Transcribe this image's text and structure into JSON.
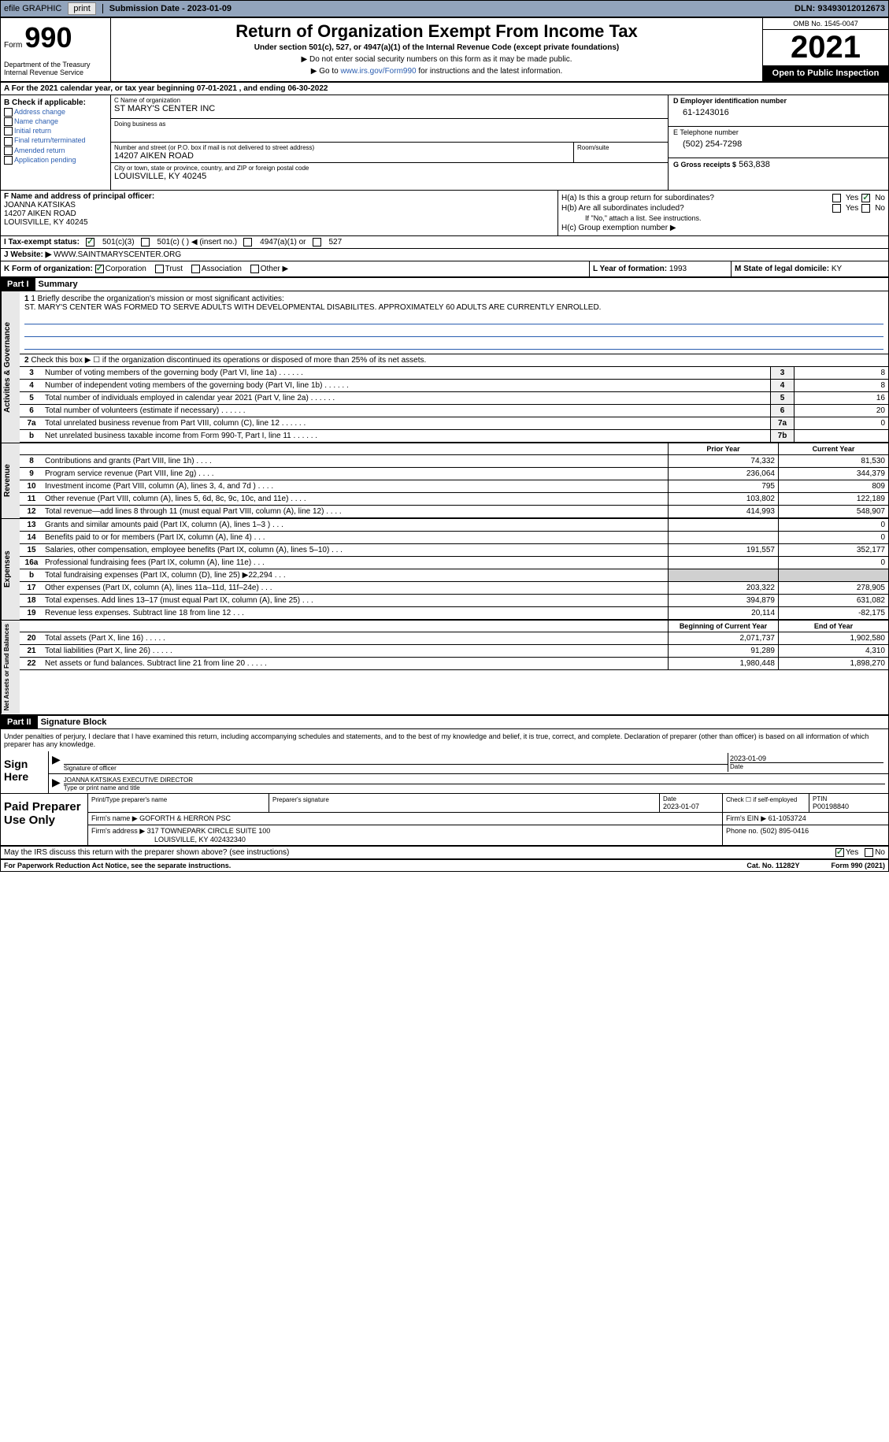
{
  "topbar": {
    "efile": "efile GRAPHIC",
    "print_btn": "print",
    "submission_label": "Submission Date - 2023-01-09",
    "dln": "DLN: 93493012012673"
  },
  "header": {
    "form_label": "Form",
    "form_number": "990",
    "dept": "Department of the Treasury\nInternal Revenue Service",
    "title": "Return of Organization Exempt From Income Tax",
    "subtitle": "Under section 501(c), 527, or 4947(a)(1) of the Internal Revenue Code (except private foundations)",
    "instruction1": "▶ Do not enter social security numbers on this form as it may be made public.",
    "instruction2": "▶ Go to",
    "instruction2_link": "www.irs.gov/Form990",
    "instruction2_suffix": "for instructions and the latest information.",
    "omb": "OMB No. 1545-0047",
    "year": "2021",
    "inspection": "Open to Public Inspection"
  },
  "row_a": "A For the 2021 calendar year, or tax year beginning 07-01-2021    , and ending 06-30-2022",
  "check_b": {
    "label": "B Check if applicable:",
    "options": [
      "Address change",
      "Name change",
      "Initial return",
      "Final return/terminated",
      "Amended return",
      "Application pending"
    ]
  },
  "name": {
    "label": "C Name of organization",
    "value": "ST MARY'S CENTER INC",
    "dba_label": "Doing business as",
    "dba_value": "",
    "addr_label": "Number and street (or P.O. box if mail is not delivered to street address)",
    "addr_value": "14207 AIKEN ROAD",
    "room_label": "Room/suite",
    "city_label": "City or town, state or province, country, and ZIP or foreign postal code",
    "city_value": "LOUISVILLE, KY  40245"
  },
  "id": {
    "ein_label": "D Employer identification number",
    "ein_value": "61-1243016",
    "phone_label": "E Telephone number",
    "phone_value": "(502) 254-7298",
    "gross_label": "G Gross receipts $",
    "gross_value": "563,838"
  },
  "officer": {
    "label": "F Name and address of principal officer:",
    "name": "JOANNA KATSIKAS",
    "addr1": "14207 AIKEN ROAD",
    "addr2": "LOUISVILLE, KY  40245"
  },
  "h": {
    "ha": "H(a)  Is this a group return for subordinates?",
    "hb": "H(b)  Are all subordinates included?",
    "hb_note": "If \"No,\" attach a list. See instructions.",
    "hc": "H(c)  Group exemption number ▶"
  },
  "status": {
    "label": "I    Tax-exempt status:",
    "opt1": "501(c)(3)",
    "opt2": "501(c) (  ) ◀ (insert no.)",
    "opt3": "4947(a)(1) or",
    "opt4": "527"
  },
  "website": {
    "label": "J   Website: ▶",
    "value": "WWW.SAINTMARYSCENTER.ORG"
  },
  "k": {
    "label": "K Form of organization:",
    "corp": "Corporation",
    "trust": "Trust",
    "assoc": "Association",
    "other": "Other ▶",
    "l_label": "L Year of formation:",
    "l_value": "1993",
    "m_label": "M State of legal domicile:",
    "m_value": "KY"
  },
  "part1": {
    "header": "Part I",
    "title": "Summary",
    "q1_label": "1  Briefly describe the organization's mission or most significant activities:",
    "q1_text": "ST. MARY'S CENTER WAS FORMED TO SERVE ADULTS WITH DEVELOPMENTAL DISABILITES. APPROXIMATELY 60 ADULTS ARE CURRENTLY ENROLLED.",
    "q2": "Check this box ▶ ☐ if the organization discontinued its operations or disposed of more than 25% of its net assets.",
    "governance_label": "Activities & Governance",
    "revenue_label": "Revenue",
    "expenses_label": "Expenses",
    "netassets_label": "Net Assets or Fund Balances",
    "rows_gov": [
      {
        "num": "3",
        "desc": "Number of voting members of the governing body (Part VI, line 1a)",
        "box": "3",
        "val": "8"
      },
      {
        "num": "4",
        "desc": "Number of independent voting members of the governing body (Part VI, line 1b)",
        "box": "4",
        "val": "8"
      },
      {
        "num": "5",
        "desc": "Total number of individuals employed in calendar year 2021 (Part V, line 2a)",
        "box": "5",
        "val": "16"
      },
      {
        "num": "6",
        "desc": "Total number of volunteers (estimate if necessary)",
        "box": "6",
        "val": "20"
      },
      {
        "num": "7a",
        "desc": "Total unrelated business revenue from Part VIII, column (C), line 12",
        "box": "7a",
        "val": "0"
      },
      {
        "num": "b",
        "desc": "Net unrelated business taxable income from Form 990-T, Part I, line 11",
        "box": "7b",
        "val": ""
      }
    ],
    "prior_label": "Prior Year",
    "current_label": "Current Year",
    "rows_rev": [
      {
        "num": "8",
        "desc": "Contributions and grants (Part VIII, line 1h)",
        "prior": "74,332",
        "current": "81,530"
      },
      {
        "num": "9",
        "desc": "Program service revenue (Part VIII, line 2g)",
        "prior": "236,064",
        "current": "344,379"
      },
      {
        "num": "10",
        "desc": "Investment income (Part VIII, column (A), lines 3, 4, and 7d )",
        "prior": "795",
        "current": "809"
      },
      {
        "num": "11",
        "desc": "Other revenue (Part VIII, column (A), lines 5, 6d, 8c, 9c, 10c, and 11e)",
        "prior": "103,802",
        "current": "122,189"
      },
      {
        "num": "12",
        "desc": "Total revenue—add lines 8 through 11 (must equal Part VIII, column (A), line 12)",
        "prior": "414,993",
        "current": "548,907"
      }
    ],
    "rows_exp": [
      {
        "num": "13",
        "desc": "Grants and similar amounts paid (Part IX, column (A), lines 1–3 )",
        "prior": "",
        "current": "0"
      },
      {
        "num": "14",
        "desc": "Benefits paid to or for members (Part IX, column (A), line 4)",
        "prior": "",
        "current": "0"
      },
      {
        "num": "15",
        "desc": "Salaries, other compensation, employee benefits (Part IX, column (A), lines 5–10)",
        "prior": "191,557",
        "current": "352,177"
      },
      {
        "num": "16a",
        "desc": "Professional fundraising fees (Part IX, column (A), line 11e)",
        "prior": "",
        "current": "0"
      },
      {
        "num": "b",
        "desc": "Total fundraising expenses (Part IX, column (D), line 25) ▶22,294",
        "prior": "gray",
        "current": "gray"
      },
      {
        "num": "17",
        "desc": "Other expenses (Part IX, column (A), lines 11a–11d, 11f–24e)",
        "prior": "203,322",
        "current": "278,905"
      },
      {
        "num": "18",
        "desc": "Total expenses. Add lines 13–17 (must equal Part IX, column (A), line 25)",
        "prior": "394,879",
        "current": "631,082"
      },
      {
        "num": "19",
        "desc": "Revenue less expenses. Subtract line 18 from line 12",
        "prior": "20,114",
        "current": "-82,175"
      }
    ],
    "begin_label": "Beginning of Current Year",
    "end_label": "End of Year",
    "rows_net": [
      {
        "num": "20",
        "desc": "Total assets (Part X, line 16)",
        "prior": "2,071,737",
        "current": "1,902,580"
      },
      {
        "num": "21",
        "desc": "Total liabilities (Part X, line 26)",
        "prior": "91,289",
        "current": "4,310"
      },
      {
        "num": "22",
        "desc": "Net assets or fund balances. Subtract line 21 from line 20",
        "prior": "1,980,448",
        "current": "1,898,270"
      }
    ]
  },
  "part2": {
    "header": "Part II",
    "title": "Signature Block",
    "declaration": "Under penalties of perjury, I declare that I have examined this return, including accompanying schedules and statements, and to the best of my knowledge and belief, it is true, correct, and complete. Declaration of preparer (other than officer) is based on all information of which preparer has any knowledge.",
    "sign_label": "Sign Here",
    "sig_officer_label": "Signature of officer",
    "sig_date": "2023-01-09",
    "sig_date_label": "Date",
    "sig_name": "JOANNA KATSIKAS  EXECUTIVE DIRECTOR",
    "sig_name_label": "Type or print name and title",
    "preparer_label": "Paid Preparer Use Only",
    "prep_name_label": "Print/Type preparer's name",
    "prep_sig_label": "Preparer's signature",
    "prep_date_label": "Date",
    "prep_date": "2023-01-07",
    "prep_check_label": "Check ☐ if self-employed",
    "prep_ptin_label": "PTIN",
    "prep_ptin": "P00198840",
    "firm_name_label": "Firm's name    ▶",
    "firm_name": "GOFORTH & HERRON PSC",
    "firm_ein_label": "Firm's EIN ▶",
    "firm_ein": "61-1053724",
    "firm_addr_label": "Firm's address ▶",
    "firm_addr1": "317 TOWNEPARK CIRCLE SUITE 100",
    "firm_addr2": "LOUISVILLE, KY  402432340",
    "firm_phone_label": "Phone no.",
    "firm_phone": "(502) 895-0416"
  },
  "footer": {
    "discuss": "May the IRS discuss this return with the preparer shown above? (see instructions)",
    "yes": "Yes",
    "no": "No",
    "paperwork": "For Paperwork Reduction Act Notice, see the separate instructions.",
    "cat": "Cat. No. 11282Y",
    "form": "Form 990 (2021)"
  }
}
